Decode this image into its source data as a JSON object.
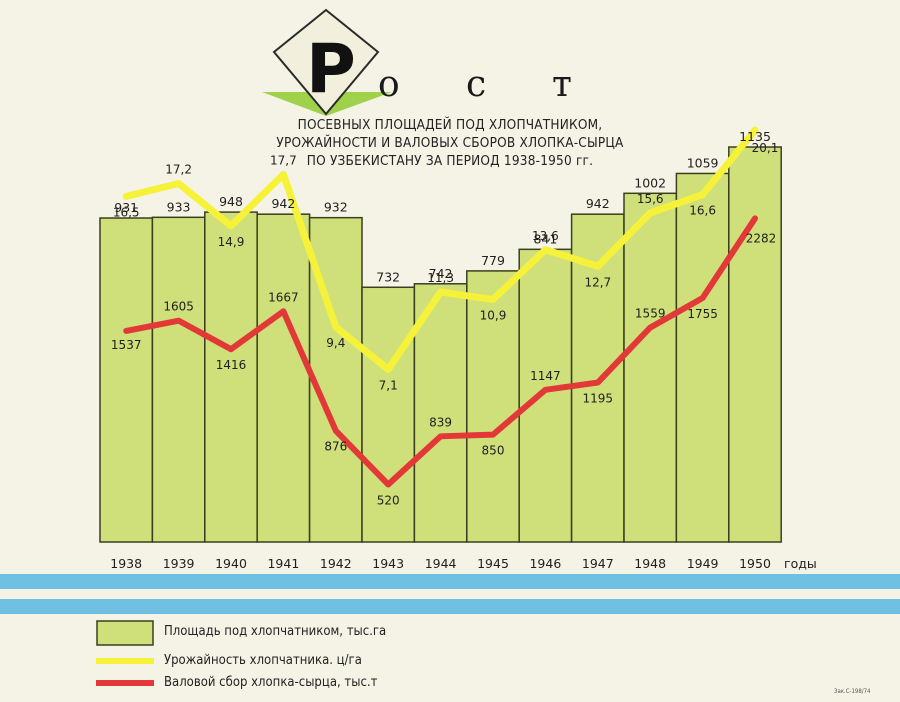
{
  "header": {
    "title_initial": "Р",
    "title_rest": [
      "о",
      "с",
      "т"
    ],
    "subtitle_lines": [
      "ПОСЕВНЫХ ПЛОЩАДЕЙ ПОД ХЛОПЧАТНИКОМ,",
      "УРОЖАЙНОСТИ И ВАЛОВЫХ СБОРОВ ХЛОПКА-СЫРЦА",
      "ПО УЗБЕКИСТАНУ ЗА ПЕРИОД 1938-1950 гг."
    ]
  },
  "chart_data": {
    "type": "bar",
    "categories": [
      "1938",
      "1939",
      "1940",
      "1941",
      "1942",
      "1943",
      "1944",
      "1945",
      "1946",
      "1947",
      "1948",
      "1949",
      "1950"
    ],
    "x_unit_label": "годы",
    "series": [
      {
        "name": "Площадь под хлопчатником, тыс.га",
        "type": "bar",
        "values": [
          931,
          933,
          948,
          942,
          932,
          732,
          742,
          779,
          841,
          942,
          1002,
          1059,
          1135
        ],
        "labels": [
          "931",
          "933",
          "948",
          "942",
          "932",
          "732",
          "742",
          "779",
          "841",
          "942",
          "1002",
          "1059",
          "1135"
        ]
      },
      {
        "name": "Урожайность хлопчатника, ц/га",
        "type": "line",
        "values": [
          16.5,
          17.2,
          14.9,
          17.7,
          9.4,
          7.1,
          11.3,
          10.9,
          13.6,
          12.7,
          15.6,
          16.6,
          20.1
        ],
        "labels": [
          "16,5",
          "17,2",
          "14,9",
          "17,7",
          "9,4",
          "7,1",
          "11,3",
          "10,9",
          "13,6",
          "12,7",
          "15,6",
          "16,6",
          "20,1"
        ]
      },
      {
        "name": "Валовой сбор хлопка-сырца, тыс.т",
        "type": "line",
        "values": [
          1537,
          1605,
          1416,
          1667,
          876,
          520,
          839,
          850,
          1147,
          1195,
          1559,
          1755,
          2282
        ],
        "labels": [
          "1537",
          "1605",
          "1416",
          "1667",
          "876",
          "520",
          "839",
          "850",
          "1147",
          "1195",
          "1559",
          "1755",
          "2282"
        ]
      }
    ]
  },
  "legend": {
    "area": "Площадь под хлопчатником, тыс.га",
    "yield": "Урожайность хлопчатника. ц/га",
    "harvest": "Валовой сбор хлопка-сырца, тыс.т"
  },
  "colors": {
    "bar_fill": "#cfe07a",
    "bar_stroke": "#3a3f1e",
    "yield_line": "#f6f23a",
    "harvest_line": "#e23838",
    "stripe_blue": "#6fc0e2",
    "accent_green": "#9fd24a",
    "ink": "#1f1f1f"
  },
  "footer": {
    "print_code": "Зак.С-198/74"
  }
}
